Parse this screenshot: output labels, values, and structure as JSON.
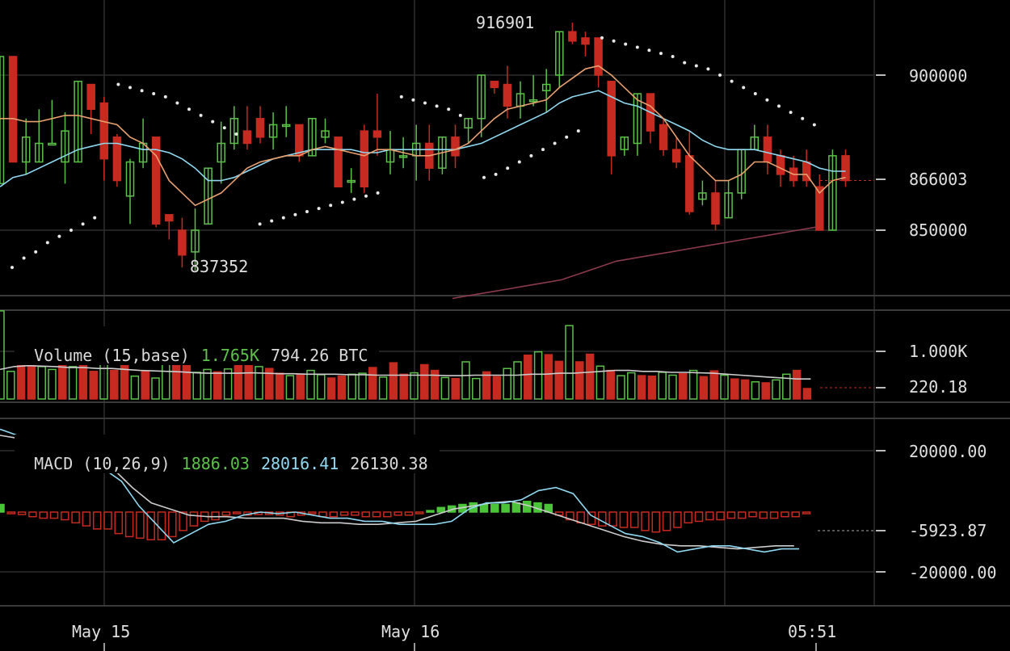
{
  "chart_data": {
    "type": "candlestick",
    "xaxis": {
      "ticks": [
        "May 15",
        "May 16",
        "05:51"
      ]
    },
    "price": {
      "yticks": [
        "900000",
        "866003",
        "850000"
      ],
      "current": "866003",
      "annotations": {
        "high": "916901",
        "low": "837352"
      },
      "candles": [
        [
          865000,
          906000,
          865000,
          906000
        ],
        [
          906000,
          872000,
          872000,
          906000
        ],
        [
          872000,
          880000,
          868000,
          886000
        ],
        [
          872000,
          878000,
          872000,
          889000
        ],
        [
          878000,
          878000,
          878000,
          892000
        ],
        [
          872000,
          882000,
          865000,
          888000
        ],
        [
          872000,
          898000,
          872000,
          898000
        ],
        [
          897000,
          889000,
          881000,
          897000
        ],
        [
          891000,
          873000,
          866000,
          893000
        ],
        [
          880000,
          866000,
          864000,
          881000
        ],
        [
          861000,
          872000,
          852000,
          873000
        ],
        [
          872000,
          878000,
          870000,
          886000
        ],
        [
          880000,
          852000,
          851000,
          880000
        ],
        [
          855000,
          853000,
          847000,
          855000
        ],
        [
          850000,
          842000,
          838000,
          854000
        ],
        [
          843000,
          850000,
          837000,
          857000
        ],
        [
          852000,
          870000,
          852000,
          870000
        ],
        [
          872000,
          878000,
          865000,
          885000
        ],
        [
          878000,
          886000,
          876000,
          890000
        ],
        [
          882000,
          878000,
          876000,
          890000
        ],
        [
          886000,
          880000,
          878000,
          890000
        ],
        [
          880000,
          884000,
          876000,
          888000
        ],
        [
          884000,
          884000,
          880000,
          890000
        ],
        [
          884000,
          874000,
          872000,
          884000
        ],
        [
          874000,
          886000,
          874000,
          886000
        ],
        [
          880000,
          882000,
          878000,
          886000
        ],
        [
          880000,
          864000,
          864000,
          880000
        ],
        [
          866000,
          866000,
          862000,
          870000
        ],
        [
          882000,
          864000,
          862000,
          884000
        ],
        [
          882000,
          880000,
          874000,
          894000
        ],
        [
          872000,
          876000,
          868000,
          882000
        ],
        [
          874000,
          874000,
          870000,
          880000
        ],
        [
          874000,
          878000,
          866000,
          884000
        ],
        [
          878000,
          870000,
          866000,
          884000
        ],
        [
          870000,
          880000,
          868000,
          880000
        ],
        [
          880000,
          874000,
          870000,
          884000
        ],
        [
          883000,
          886000,
          878000,
          886000
        ],
        [
          886000,
          900000,
          880000,
          900000
        ],
        [
          898000,
          896000,
          894000,
          898000
        ],
        [
          897000,
          890000,
          886000,
          903000
        ],
        [
          890000,
          894000,
          886000,
          898000
        ],
        [
          892000,
          892000,
          890000,
          900000
        ],
        [
          895000,
          897000,
          888000,
          902000
        ],
        [
          900000,
          914000,
          896000,
          914000
        ],
        [
          914000,
          911000,
          910000,
          916901
        ],
        [
          912000,
          910000,
          906000,
          914000
        ],
        [
          912000,
          900000,
          896000,
          912000
        ],
        [
          898000,
          874000,
          868000,
          898000
        ],
        [
          876000,
          880000,
          874000,
          880000
        ],
        [
          878000,
          894000,
          874000,
          894000
        ],
        [
          894000,
          882000,
          878000,
          894000
        ],
        [
          884000,
          876000,
          874000,
          886000
        ],
        [
          876000,
          872000,
          870000,
          880000
        ],
        [
          874000,
          856000,
          855000,
          882000
        ],
        [
          860000,
          862000,
          858000,
          866000
        ],
        [
          862000,
          852000,
          850000,
          866000
        ],
        [
          854000,
          862000,
          854000,
          866000
        ],
        [
          862000,
          876000,
          860000,
          876000
        ],
        [
          876000,
          880000,
          876000,
          884000
        ],
        [
          880000,
          872000,
          868000,
          884000
        ],
        [
          874000,
          868000,
          864000,
          876000
        ],
        [
          870000,
          866000,
          864000,
          874000
        ],
        [
          872000,
          866000,
          864000,
          876000
        ],
        [
          864000,
          850000,
          850000,
          868000
        ],
        [
          850000,
          874000,
          850000,
          876000
        ],
        [
          874000,
          866000,
          864000,
          876000
        ]
      ],
      "sma_fast": [
        886000,
        886000,
        885000,
        885000,
        886000,
        887000,
        887000,
        886000,
        885000,
        884000,
        880000,
        878000,
        874000,
        866000,
        862000,
        858000,
        860000,
        862000,
        866000,
        870000,
        872000,
        873000,
        874000,
        874000,
        876000,
        877000,
        876000,
        875000,
        874000,
        876000,
        876000,
        875000,
        874000,
        874000,
        875000,
        876000,
        878000,
        882000,
        886000,
        889000,
        890000,
        891000,
        892000,
        896000,
        899000,
        902000,
        903000,
        900000,
        896000,
        892000,
        890000,
        886000,
        880000,
        874000,
        870000,
        866000,
        866000,
        868000,
        872000,
        872000,
        870000,
        868000,
        868000,
        862000,
        866000,
        867000
      ],
      "sma_slow": [
        864000,
        867000,
        868000,
        870000,
        872000,
        874000,
        876000,
        877000,
        878000,
        878000,
        877000,
        876000,
        876000,
        875000,
        873000,
        870000,
        866000,
        866000,
        867000,
        869000,
        871000,
        873000,
        874000,
        875000,
        876000,
        876000,
        876000,
        876000,
        875000,
        875000,
        876000,
        876000,
        876000,
        876000,
        876000,
        876000,
        877000,
        878000,
        880000,
        882000,
        884000,
        886000,
        888000,
        891000,
        893000,
        894000,
        895000,
        893000,
        891000,
        890000,
        888000,
        886000,
        884000,
        882000,
        879000,
        877000,
        876000,
        876000,
        876000,
        875000,
        874000,
        873000,
        872000,
        870000,
        869000,
        869000
      ],
      "sma_long": [
        828000,
        829000,
        830000,
        831000,
        832000,
        833000,
        834000,
        836000,
        838000,
        840000,
        841000,
        842000,
        843000,
        844000,
        845000,
        846000,
        847000,
        848000,
        849000,
        850000,
        851000
      ],
      "sar": [
        838000,
        841000,
        843000,
        846000,
        848000,
        850000,
        852000,
        854000,
        null,
        897000,
        896000,
        895000,
        894000,
        893000,
        891000,
        889000,
        887000,
        885000,
        883000,
        881000,
        null,
        852000,
        853000,
        854000,
        855000,
        856000,
        857000,
        858000,
        859000,
        860000,
        861000,
        862000,
        null,
        893000,
        892000,
        891000,
        890000,
        889000,
        887000,
        null,
        867000,
        868000,
        870000,
        872000,
        874000,
        876000,
        878000,
        880000,
        882000,
        null,
        912000,
        911000,
        910000,
        909000,
        908000,
        907000,
        906000,
        904000,
        903000,
        902000,
        900000,
        898000,
        896000,
        894000,
        892000,
        890000,
        888000,
        886000,
        884000
      ]
    },
    "volume": {
      "header": {
        "label": "Volume (15,base)",
        "value1": "1.765K",
        "value2": "794.26 BTC"
      },
      "yticks": [
        "1.000K",
        "220.18"
      ],
      "current": "220.18",
      "values": [
        1850,
        580,
        1050,
        920,
        680,
        620,
        1050,
        680,
        1050,
        580,
        840,
        600,
        1050,
        480,
        580,
        440,
        780,
        860,
        710,
        560,
        620,
        570,
        630,
        880,
        760,
        680,
        640,
        540,
        490,
        520,
        600,
        510,
        440,
        480,
        520,
        540,
        660,
        460,
        760,
        520,
        550,
        720,
        600,
        450,
        430,
        780,
        430,
        570,
        470,
        640,
        780,
        920,
        990,
        930,
        790,
        1540,
        780,
        940,
        690,
        600,
        490,
        550,
        490,
        480,
        560,
        500,
        530,
        600,
        470,
        590,
        500,
        420,
        400,
        360,
        340,
        400,
        520,
        600,
        220
      ],
      "ma": [
        620,
        680,
        700,
        690,
        680,
        660,
        660,
        640,
        640,
        620,
        600,
        590,
        580,
        570,
        550,
        540,
        540,
        540,
        550,
        540,
        530,
        530,
        520,
        520,
        520,
        510,
        510,
        500,
        500,
        500,
        500,
        500,
        490,
        490,
        500,
        500,
        500,
        500,
        520,
        520,
        540,
        540,
        560,
        580,
        600,
        600,
        580,
        580,
        560,
        560,
        550,
        540,
        520,
        500,
        480,
        460,
        440,
        420,
        420
      ]
    },
    "macd": {
      "header": {
        "label": "MACD (10,26,9)",
        "hist": "1886.03",
        "macd": "28016.41",
        "signal": "26130.38"
      },
      "yticks": [
        "20000.00",
        "-5923.87",
        "-20000.00"
      ],
      "current": "-5923.87",
      "histogram": [
        2500,
        -500,
        -800,
        -1500,
        -2000,
        -2000,
        -2500,
        -3500,
        -4500,
        -5500,
        -5500,
        -7000,
        -8000,
        -8500,
        -9000,
        -9000,
        -8000,
        -6000,
        -4500,
        -3000,
        -2500,
        -1000,
        -500,
        -1000,
        -800,
        -800,
        -1000,
        -1500,
        -1000,
        -500,
        -1500,
        -1500,
        -1000,
        -1000,
        -1500,
        -1500,
        -1500,
        -1000,
        -1000,
        -500,
        500,
        1500,
        2000,
        2500,
        3000,
        2500,
        2500,
        2500,
        3000,
        3500,
        3000,
        2500,
        -1000,
        -2500,
        -3500,
        -4000,
        -4500,
        -4500,
        -5000,
        -5000,
        -6000,
        -6500,
        -6000,
        -5000,
        -3500,
        -3000,
        -2500,
        -2500,
        -2000,
        -2000,
        -1500,
        -2000,
        -2000,
        -1500,
        -1500,
        -500
      ],
      "macd_line": [
        27000,
        25000,
        24000,
        21000,
        18000,
        16000,
        14000,
        10000,
        2000,
        -4000,
        -10000,
        -7000,
        -4000,
        -3000,
        -1000,
        0,
        -500,
        0,
        -1000,
        -2000,
        -2000,
        -3000,
        -3000,
        -4000,
        -4000,
        -4000,
        -3000,
        1000,
        3000,
        3000,
        4000,
        7000,
        8000,
        6000,
        -1000,
        -4000,
        -7000,
        -8000,
        -10000,
        -13000,
        -12000,
        -11000,
        -11000,
        -12000,
        -13000,
        -12000,
        -12000
      ],
      "signal_line": [
        25000,
        24000,
        23000,
        22000,
        20000,
        18000,
        14000,
        8000,
        3000,
        1000,
        -1000,
        -1500,
        -1500,
        -2000,
        -2000,
        -2000,
        -3000,
        -3500,
        -3500,
        -4000,
        -4000,
        -3500,
        -3000,
        -1000,
        1000,
        2000,
        3000,
        3500,
        2000,
        0,
        -2000,
        -4000,
        -6000,
        -8000,
        -9500,
        -10500,
        -11000,
        -11000,
        -11500,
        -12000,
        -11500,
        -11000,
        -11000
      ]
    }
  },
  "colors": {
    "up": "#5cc04a",
    "down": "#c62a20",
    "sma_fast": "#e8a070",
    "sma_slow": "#8fd8f0",
    "sma_long": "#8a3a4c",
    "grid": "#2e2e2e",
    "hist_up": "#4cc43a"
  }
}
